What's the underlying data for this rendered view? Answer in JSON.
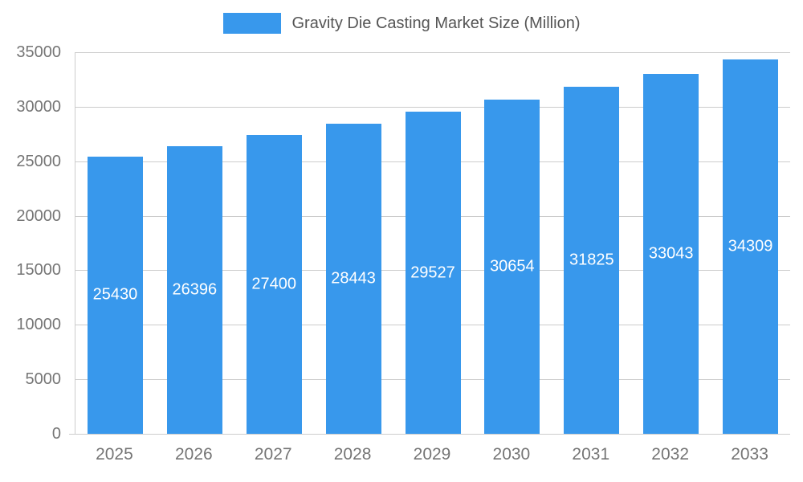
{
  "chart_data": {
    "type": "bar",
    "title": "Gravity Die Casting Market Size (Million)",
    "categories": [
      "2025",
      "2026",
      "2027",
      "2028",
      "2029",
      "2030",
      "2031",
      "2032",
      "2033"
    ],
    "values": [
      25430,
      26396,
      27400,
      28443,
      29527,
      30654,
      31825,
      33043,
      34309
    ],
    "xlabel": "",
    "ylabel": "",
    "ylim": [
      0,
      35000
    ],
    "yticks": [
      0,
      5000,
      10000,
      15000,
      20000,
      25000,
      30000,
      35000
    ],
    "grid": true,
    "legend_position": "top",
    "value_labels_position": "inside-center",
    "colors": {
      "bar": "#3898EC",
      "grid": "#CCCCCC",
      "axis_text": "#757575",
      "title_text": "#555555",
      "value_label": "#FFFFFF",
      "background": "#FFFFFF"
    }
  }
}
